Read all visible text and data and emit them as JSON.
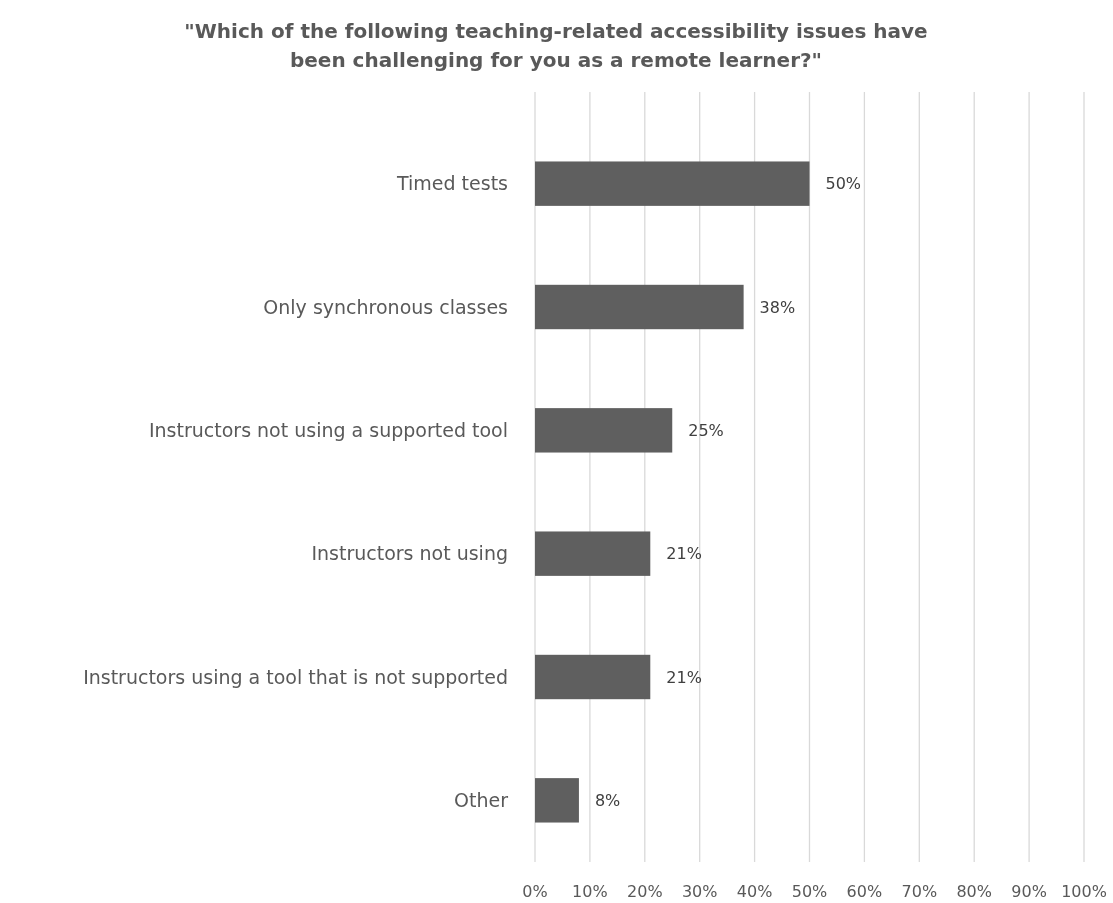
{
  "chart_data": {
    "type": "bar",
    "orientation": "horizontal",
    "title": "\"Which of the following teaching-related accessibility issues have been challenging for you as a remote learner?\"",
    "categories": [
      "Timed tests",
      "Only synchronous classes",
      "Instructors not using a supported tool",
      "Instructors not using",
      "Instructors using a tool that is not supported",
      "Other"
    ],
    "values": [
      50,
      38,
      25,
      21,
      21,
      8
    ],
    "value_labels": [
      "50%",
      "38%",
      "25%",
      "21%",
      "21%",
      "8%"
    ],
    "color": "#5f5f5f",
    "xlim": [
      0,
      100
    ],
    "xticks": [
      {
        "value": 0,
        "label": "0%"
      },
      {
        "value": 10,
        "label": "10%"
      },
      {
        "value": 20,
        "label": "20%"
      },
      {
        "value": 30,
        "label": "30%"
      },
      {
        "value": 40,
        "label": "40%"
      },
      {
        "value": 50,
        "label": "50%"
      },
      {
        "value": 60,
        "label": "60%"
      },
      {
        "value": 70,
        "label": "70%"
      },
      {
        "value": 80,
        "label": "80%"
      },
      {
        "value": 90,
        "label": "90%"
      },
      {
        "value": 100,
        "label": "100%"
      }
    ],
    "grid": "x"
  }
}
